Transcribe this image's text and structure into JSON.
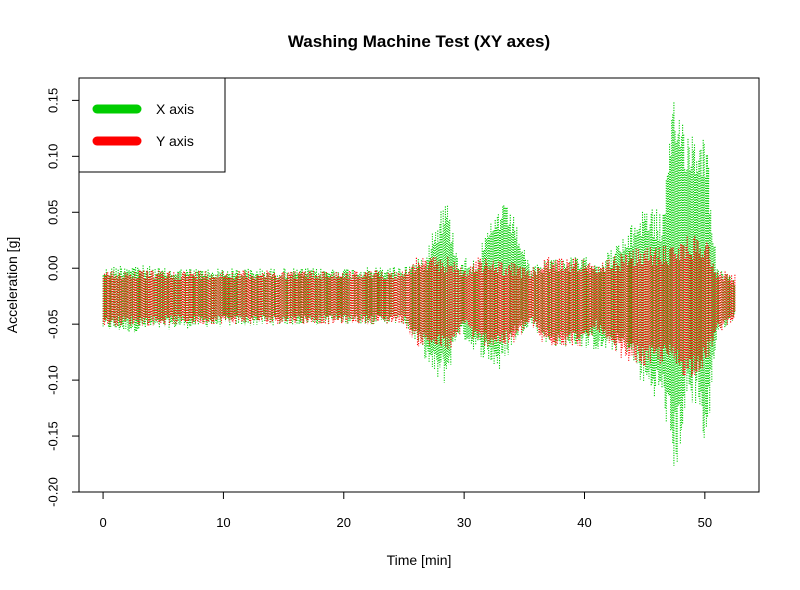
{
  "chart_data": {
    "type": "scatter",
    "title": "Washing Machine Test (XY axes)",
    "xlabel": "Time [min]",
    "ylabel": "Acceleration [g]",
    "xlim": [
      -2,
      54.5
    ],
    "ylim": [
      -0.2,
      0.17
    ],
    "xticks": [
      0,
      10,
      20,
      30,
      40,
      50
    ],
    "yticks": [
      -0.2,
      -0.15,
      -0.1,
      -0.05,
      0.0,
      0.05,
      0.1,
      0.15
    ],
    "ytick_labels": [
      "-0.20",
      "-0.15",
      "-0.10",
      "-0.05",
      "0.00",
      "0.05",
      "0.10",
      "0.15"
    ],
    "legend_position": "top-left",
    "grid": false,
    "series": [
      {
        "name": "X axis",
        "color": "#00CD00",
        "envelope": [
          {
            "t": 0.0,
            "min": -0.055,
            "max": 0.0
          },
          {
            "t": 2.0,
            "min": -0.058,
            "max": 0.005
          },
          {
            "t": 5.0,
            "min": -0.055,
            "max": 0.0
          },
          {
            "t": 10.0,
            "min": -0.052,
            "max": 0.0
          },
          {
            "t": 20.0,
            "min": -0.05,
            "max": 0.0
          },
          {
            "t": 25.0,
            "min": -0.05,
            "max": 0.002
          },
          {
            "t": 26.5,
            "min": -0.075,
            "max": 0.01
          },
          {
            "t": 27.5,
            "min": -0.1,
            "max": 0.04
          },
          {
            "t": 28.5,
            "min": -0.105,
            "max": 0.065
          },
          {
            "t": 29.5,
            "min": -0.06,
            "max": 0.01
          },
          {
            "t": 31.0,
            "min": -0.075,
            "max": 0.01
          },
          {
            "t": 33.0,
            "min": -0.095,
            "max": 0.06
          },
          {
            "t": 34.0,
            "min": -0.07,
            "max": 0.05
          },
          {
            "t": 35.5,
            "min": -0.05,
            "max": 0.0
          },
          {
            "t": 37.0,
            "min": -0.07,
            "max": 0.01
          },
          {
            "t": 39.5,
            "min": -0.07,
            "max": 0.01
          },
          {
            "t": 41.5,
            "min": -0.075,
            "max": 0.01
          },
          {
            "t": 43.5,
            "min": -0.075,
            "max": 0.03
          },
          {
            "t": 45.0,
            "min": -0.11,
            "max": 0.06
          },
          {
            "t": 46.5,
            "min": -0.12,
            "max": 0.05
          },
          {
            "t": 47.5,
            "min": -0.19,
            "max": 0.16
          },
          {
            "t": 48.5,
            "min": -0.13,
            "max": 0.13
          },
          {
            "t": 49.5,
            "min": -0.12,
            "max": 0.12
          },
          {
            "t": 50.0,
            "min": -0.18,
            "max": 0.14
          },
          {
            "t": 51.0,
            "min": -0.06,
            "max": 0.0
          },
          {
            "t": 52.5,
            "min": -0.045,
            "max": -0.01
          }
        ]
      },
      {
        "name": "Y axis",
        "color": "#FF0000",
        "envelope": [
          {
            "t": 0.0,
            "min": -0.052,
            "max": -0.002
          },
          {
            "t": 10.0,
            "min": -0.05,
            "max": -0.002
          },
          {
            "t": 25.0,
            "min": -0.05,
            "max": -0.002
          },
          {
            "t": 26.0,
            "min": -0.07,
            "max": 0.01
          },
          {
            "t": 29.0,
            "min": -0.075,
            "max": 0.01
          },
          {
            "t": 30.0,
            "min": -0.05,
            "max": -0.002
          },
          {
            "t": 31.0,
            "min": -0.07,
            "max": 0.01
          },
          {
            "t": 34.0,
            "min": -0.07,
            "max": 0.005
          },
          {
            "t": 35.5,
            "min": -0.05,
            "max": -0.002
          },
          {
            "t": 36.5,
            "min": -0.07,
            "max": 0.01
          },
          {
            "t": 40.0,
            "min": -0.07,
            "max": 0.01
          },
          {
            "t": 41.0,
            "min": -0.055,
            "max": 0.0
          },
          {
            "t": 42.0,
            "min": -0.075,
            "max": 0.01
          },
          {
            "t": 45.0,
            "min": -0.09,
            "max": 0.02
          },
          {
            "t": 47.0,
            "min": -0.085,
            "max": 0.02
          },
          {
            "t": 48.5,
            "min": -0.1,
            "max": 0.03
          },
          {
            "t": 50.0,
            "min": -0.09,
            "max": 0.03
          },
          {
            "t": 51.0,
            "min": -0.06,
            "max": 0.0
          },
          {
            "t": 52.5,
            "min": -0.045,
            "max": -0.005
          }
        ]
      }
    ]
  }
}
